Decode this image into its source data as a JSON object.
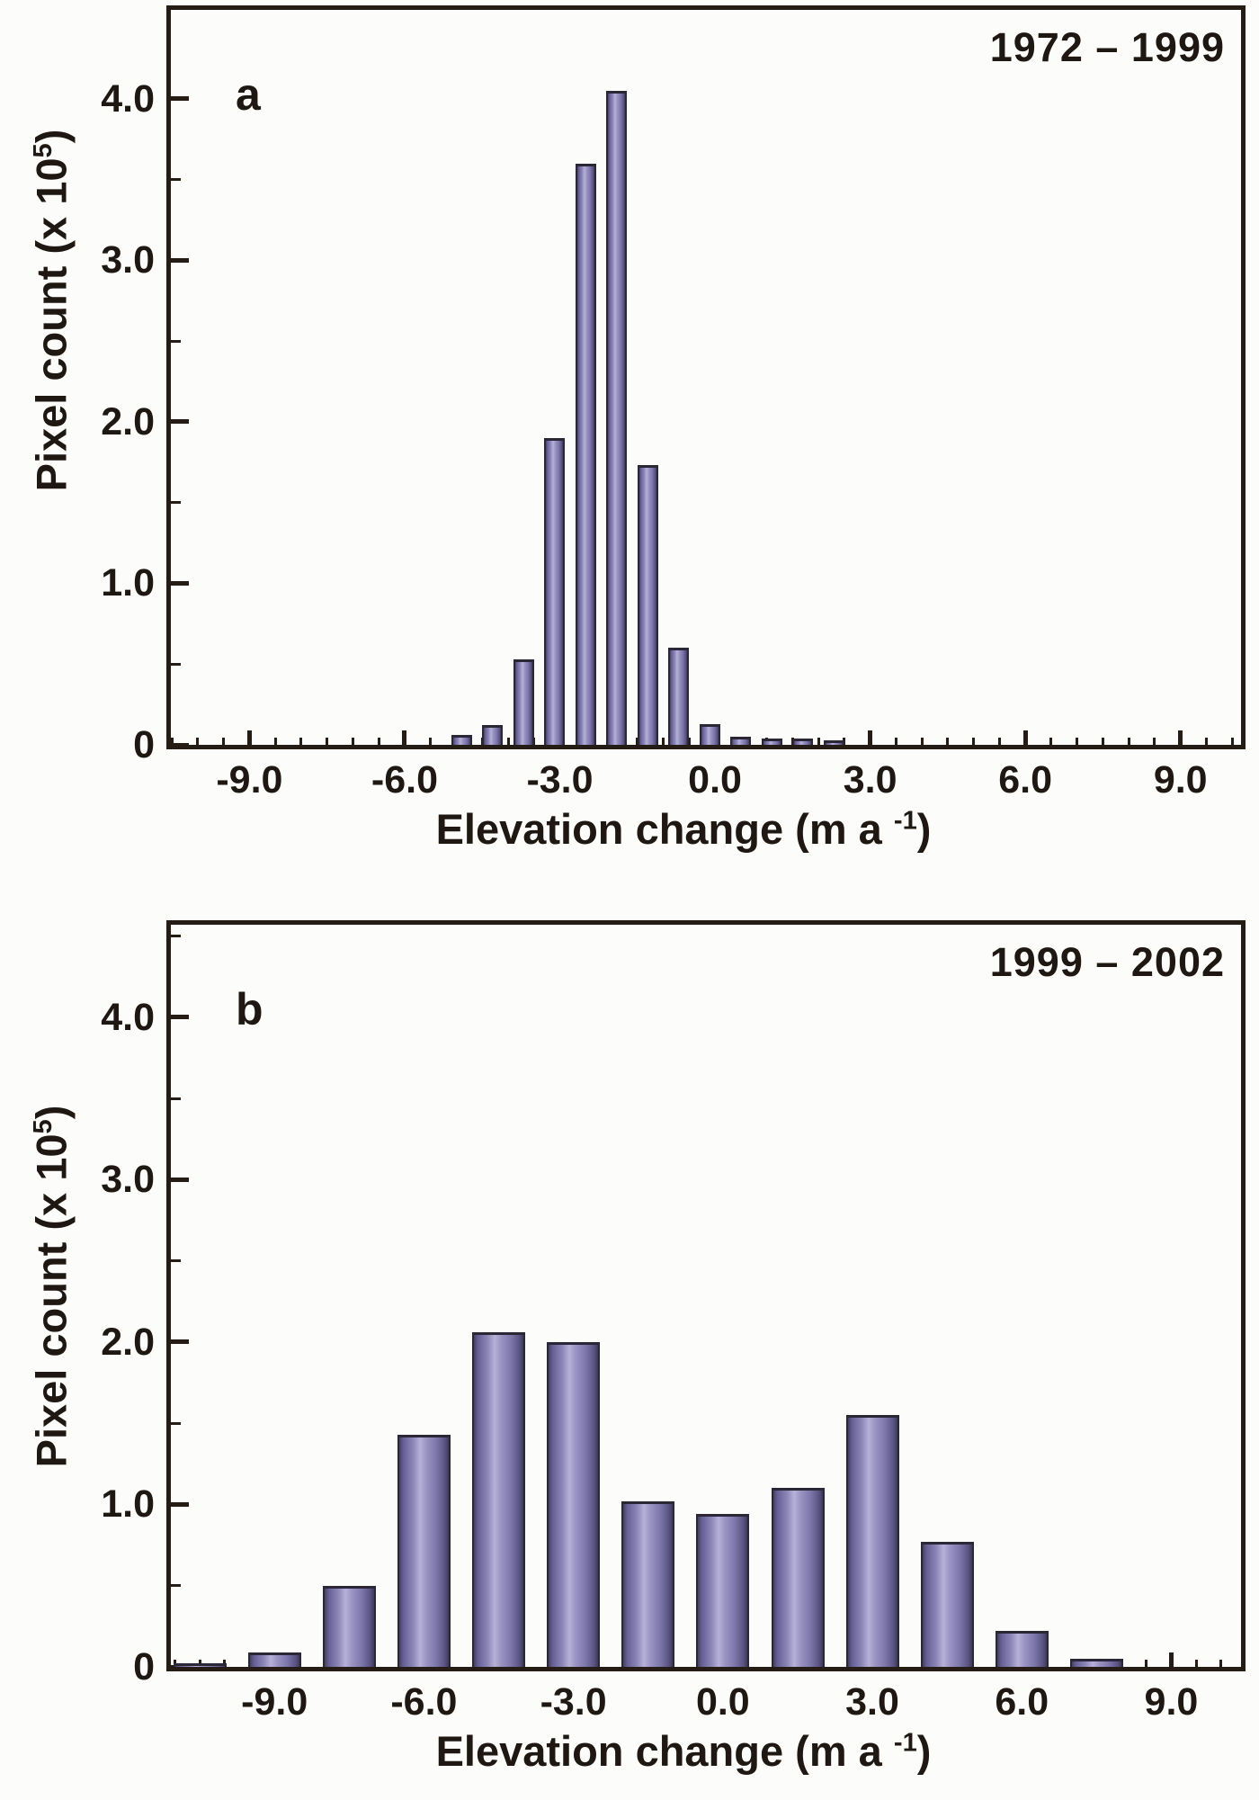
{
  "figure": {
    "background": "#fcfcfa",
    "frame_color": "#241c15",
    "text_color": "#1e1712",
    "bar_outline": "#2b2737",
    "bar_gradient": [
      "#45415e",
      "#655f96",
      "#8d87b8",
      "#b6b1d8",
      "#9a94c4",
      "#7d76aa",
      "#5a5483",
      "#3d3a55"
    ],
    "y_axis_title": {
      "prefix": "Pixel count (x 10",
      "sup": "5",
      "suffix": ")"
    },
    "x_axis_title": {
      "prefix": "Elevation change (m a ",
      "sup": "-1",
      "suffix": ")"
    }
  },
  "panels": [
    {
      "label": "a",
      "period": "1972 – 1999",
      "y_tick_labels": [
        "0",
        "1.0",
        "2.0",
        "3.0",
        "4.0"
      ],
      "x_tick_labels": [
        "-9.0",
        "-6.0",
        "-3.0",
        "0.0",
        "3.0",
        "6.0",
        "9.0"
      ]
    },
    {
      "label": "b",
      "period": "1999 – 2002",
      "y_tick_labels": [
        "0",
        "1.0",
        "2.0",
        "3.0",
        "4.0"
      ],
      "x_tick_labels": [
        "-9.0",
        "-6.0",
        "-3.0",
        "0.0",
        "3.0",
        "6.0",
        "9.0"
      ]
    }
  ],
  "chart_data": [
    {
      "type": "bar",
      "title": "1972 – 1999",
      "xlabel": "Elevation change (m a -1)",
      "ylabel": "Pixel count (x 10^5)",
      "x": [
        -4.9,
        -4.3,
        -3.7,
        -3.1,
        -2.5,
        -1.9,
        -1.3,
        -0.7,
        -0.1,
        0.5,
        1.1,
        1.7,
        2.3
      ],
      "values": [
        0.06,
        0.12,
        0.53,
        1.9,
        3.6,
        4.05,
        1.73,
        0.6,
        0.13,
        0.05,
        0.04,
        0.04,
        0.03
      ],
      "bar_width": 0.4,
      "xlim": [
        -10.52,
        10.17
      ],
      "ylim": [
        0,
        4.55
      ],
      "xticks": [
        -9,
        -6,
        -3,
        0,
        3,
        6,
        9
      ],
      "yticks": [
        0,
        1,
        2,
        3,
        4
      ],
      "minor_step_x": 0.5,
      "minor_step_y": 0.5,
      "grid": false,
      "legend": false
    },
    {
      "type": "bar",
      "title": "1999 – 2002",
      "xlabel": "Elevation change (m a -1)",
      "ylabel": "Pixel count (x 10^5)",
      "x": [
        -10.5,
        -9.0,
        -7.5,
        -6.0,
        -4.5,
        -3.0,
        -1.5,
        0.0,
        1.5,
        3.0,
        4.5,
        6.0,
        7.5
      ],
      "values": [
        0.02,
        0.09,
        0.5,
        1.43,
        2.06,
        2.0,
        1.02,
        0.94,
        1.1,
        1.55,
        0.77,
        0.22,
        0.05
      ],
      "bar_width": 1.06,
      "xlim": [
        -11.08,
        10.4
      ],
      "ylim": [
        0,
        4.57
      ],
      "xticks": [
        -9,
        -6,
        -3,
        0,
        3,
        6,
        9
      ],
      "yticks": [
        0,
        1,
        2,
        3,
        4
      ],
      "minor_step_x": 0.5,
      "minor_step_y": 0.5,
      "grid": false,
      "legend": false
    }
  ]
}
